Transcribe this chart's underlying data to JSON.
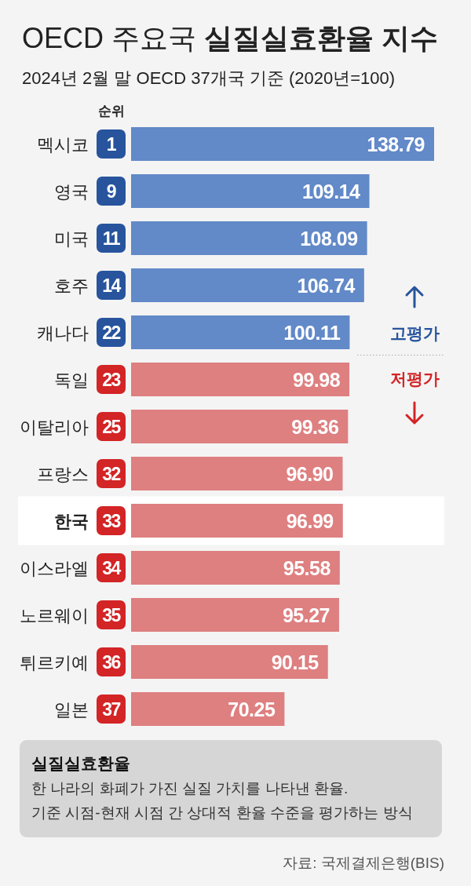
{
  "chart_data": {
    "type": "bar",
    "orientation": "horizontal",
    "title": "OECD 주요국 실질실효환율 지수",
    "subtitle": "2024년 2월 말 OECD 37개국 기준 (2020년=100)",
    "categories": [
      "멕시코",
      "영국",
      "미국",
      "호주",
      "캐나다",
      "독일",
      "이탈리아",
      "프랑스",
      "한국",
      "이스라엘",
      "노르웨이",
      "튀르키예",
      "일본"
    ],
    "values": [
      138.79,
      109.14,
      108.09,
      106.74,
      100.11,
      99.98,
      99.36,
      96.9,
      96.99,
      95.58,
      95.27,
      90.15,
      70.25
    ],
    "value_labels": [
      "138.79",
      "109.14",
      "108.09",
      "106.74",
      "100.11",
      "99.98",
      "99.36",
      "96.90",
      "96.99",
      "95.58",
      "95.27",
      "90.15",
      "70.25"
    ],
    "colors": [
      "#6289c8",
      "#6289c8",
      "#6289c8",
      "#6289c8",
      "#6289c8",
      "#de7f80",
      "#de7f80",
      "#de7f80",
      "#de7f80",
      "#de7f80",
      "#de7f80",
      "#de7f80",
      "#de7f80"
    ],
    "bands": [
      {
        "axis": "y",
        "from": "한국",
        "to": "한국",
        "color": "#ffffff"
      }
    ],
    "annotations": [
      "순위",
      "1",
      "9",
      "11",
      "14",
      "22",
      "23",
      "25",
      "32",
      "33",
      "34",
      "35",
      "36",
      "37",
      "고평가",
      "저평가",
      "실질실효환율",
      "한 나라의 화폐가 가진 실질 가치를 나타낸 환율.",
      "기준 시점-현재 시점 간 상대적 환율 수준을 평가하는 방식",
      "자료: 국제결제은행(BIS)"
    ]
  }
}
